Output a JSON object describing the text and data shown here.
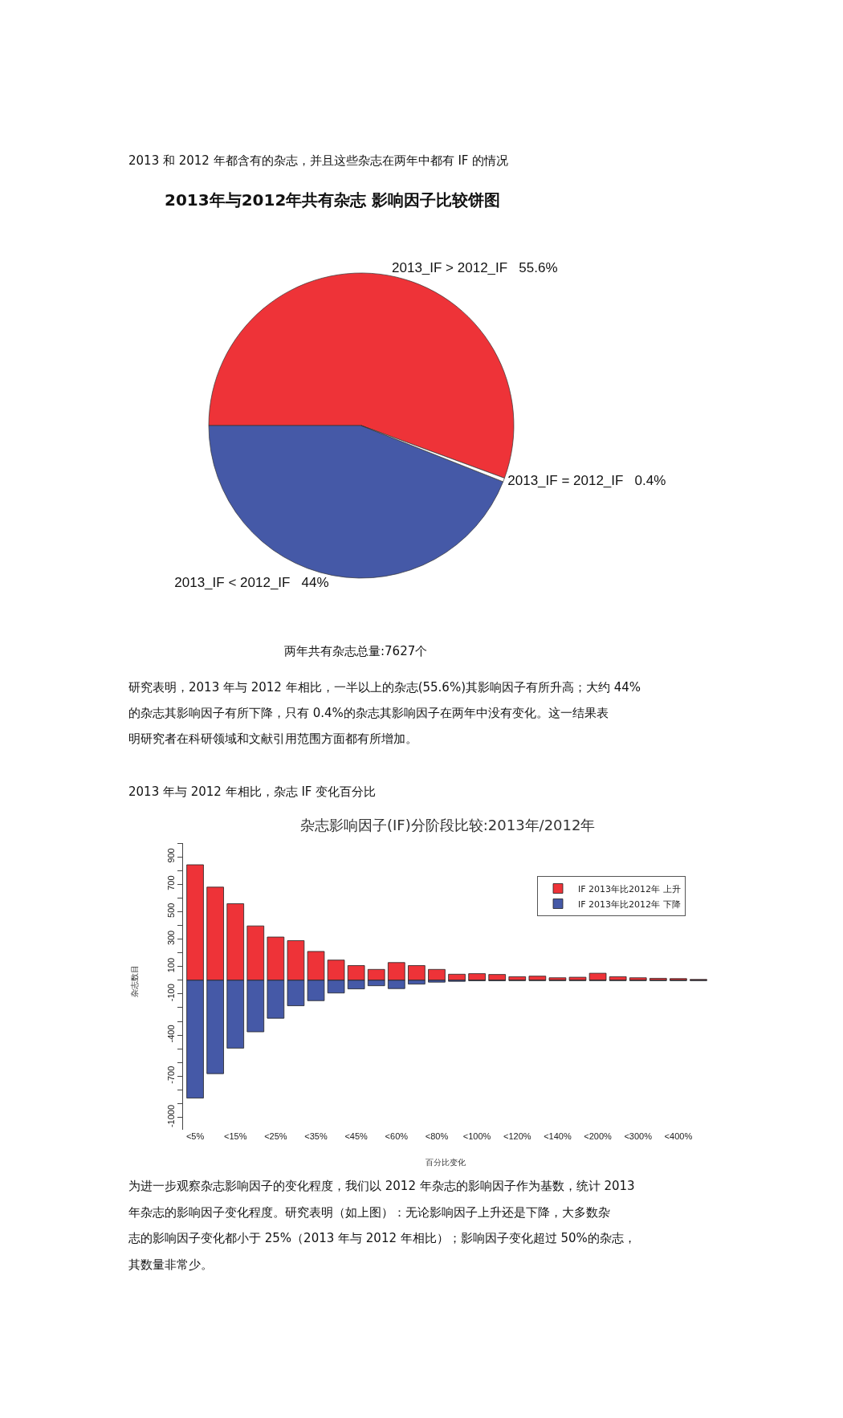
{
  "chart_data": [
    {
      "type": "pie",
      "title": "2013年与2012年共有杂志 影响因子比较饼图",
      "categories": [
        "2013_IF > 2012_IF",
        "2013_IF < 2012_IF",
        "2013_IF = 2012_IF"
      ],
      "values": [
        55.6,
        44,
        0.4
      ],
      "value_labels": [
        "55.6%",
        "44%",
        "0.4%"
      ],
      "colors": [
        "#ee3338",
        "#4559a7",
        "#ffffff"
      ],
      "legend": false,
      "annotations": [
        "2013 和 2012 年都含有的杂志，并且这些杂志在两年中都有 IF 的情况",
        "两年共有杂志总量:7627个",
        "研究表明，2013 年与 2012 年相比，一半以上的杂志(55.6%)其影响因子有所升高；大约 44%",
        "的杂志其影响因子有所下降，只有 0.4%的杂志其影响因子在两年中没有变化。这一结果表",
        "明研究者在科研领域和文献引用范围方面都有所增加。"
      ]
    },
    {
      "type": "bar",
      "title": "杂志影响因子(IF)分阶段比较:2013年/2012年",
      "xlabel": "百分比变化",
      "ylabel": "杂志数目",
      "categories": [
        "<5%",
        null,
        "<15%",
        null,
        "<25%",
        null,
        "<35%",
        null,
        "<45%",
        null,
        "<60%",
        null,
        "<80%",
        null,
        "<100%",
        null,
        "<120%",
        null,
        "<140%",
        null,
        "<200%",
        null,
        "<300%",
        null,
        "<400%",
        null
      ],
      "stacked": true,
      "series": [
        {
          "name": "IF 2013年比2012年 上升",
          "color": "#ee3338",
          "values": [
            842,
            679,
            558,
            396,
            315,
            289,
            210,
            147,
            107,
            79,
            129,
            107,
            79,
            44,
            48,
            42,
            26,
            30,
            18,
            22,
            51,
            26,
            18,
            14,
            12,
            6
          ]
        },
        {
          "name": "IF 2013年比2012年 下降",
          "color": "#4559a7",
          "values": [
            -859,
            -681,
            -495,
            -376,
            -277,
            -186,
            -149,
            -93,
            -63,
            -40,
            -61,
            -28,
            -14,
            -8,
            -3,
            -3,
            -2,
            -2,
            -2,
            -2,
            -2,
            -2,
            -2,
            -2,
            -2,
            -2
          ]
        }
      ],
      "ylim": [
        -1090,
        1000
      ],
      "yticks": [
        -1000,
        {
          "value": -900,
          "label": null
        },
        {
          "value": -800,
          "label": null
        },
        -700,
        {
          "value": -600,
          "label": null
        },
        {
          "value": -500,
          "label": null
        },
        -400,
        {
          "value": -300,
          "label": null
        },
        {
          "value": -200,
          "label": null
        },
        -100,
        {
          "value": 0,
          "label": null
        },
        100,
        {
          "value": 200,
          "label": null
        },
        300,
        {
          "value": 400,
          "label": null
        },
        500,
        {
          "value": 600,
          "label": null
        },
        700,
        {
          "value": 800,
          "label": null
        },
        900,
        {
          "value": 1000,
          "label": null
        }
      ],
      "grid": false,
      "legend": "top right",
      "annotations": [
        "2013 年与 2012 年相比，杂志 IF 变化百分比",
        "为进一步观察杂志影响因子的变化程度，我们以 2012 年杂志的影响因子作为基数，统计 2013",
        "年杂志的影响因子变化程度。研究表明（如上图）：无论影响因子上升还是下降，大多数杂",
        "志的影响因子变化都小于 25%（2013 年与 2012 年相比）；影响因子变化超过 50%的杂志，",
        "其数量非常少。"
      ]
    }
  ]
}
